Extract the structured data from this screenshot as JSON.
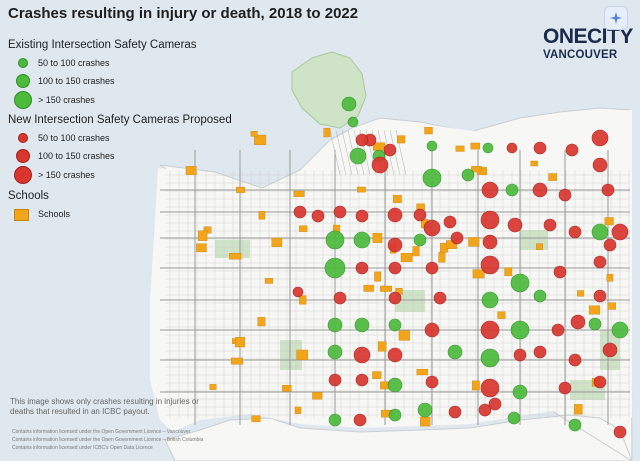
{
  "title": "Crashes resulting in injury or death, 2018 to 2022",
  "legend": {
    "existing": {
      "heading": "Existing Intersection Safety Cameras",
      "color": "#4cbb3c",
      "items": [
        "50 to 100 crashes",
        "100 to 150 crashes",
        "> 150 crashes"
      ]
    },
    "proposed": {
      "heading": "New Intersection Safety Cameras Proposed",
      "color": "#d9362f",
      "items": [
        "50 to 100 crashes",
        "100 to 150 crashes",
        "> 150 crashes"
      ]
    },
    "schools": {
      "heading": "Schools",
      "item": "Schools",
      "color": "#f2a51b"
    }
  },
  "logo": {
    "line1": "ONECITY",
    "line2": "VANCOUVER"
  },
  "note": "This image shows only crashes resulting in injuries or deaths that resulted in an ICBC payout.",
  "credits": [
    "Contains information licensed under the Open Government Licence – Vancouver",
    "Contains information licensed under the Open Government Licence – British Columbia",
    "Contains information licensed under ICBC's Open Data Licence"
  ],
  "corner_icon": "ai-sparkle-icon",
  "colors": {
    "water": "#dfe8ef",
    "land": "#f7f7f5",
    "park": "#cfe3c6",
    "road": "#bdbdbd"
  }
}
